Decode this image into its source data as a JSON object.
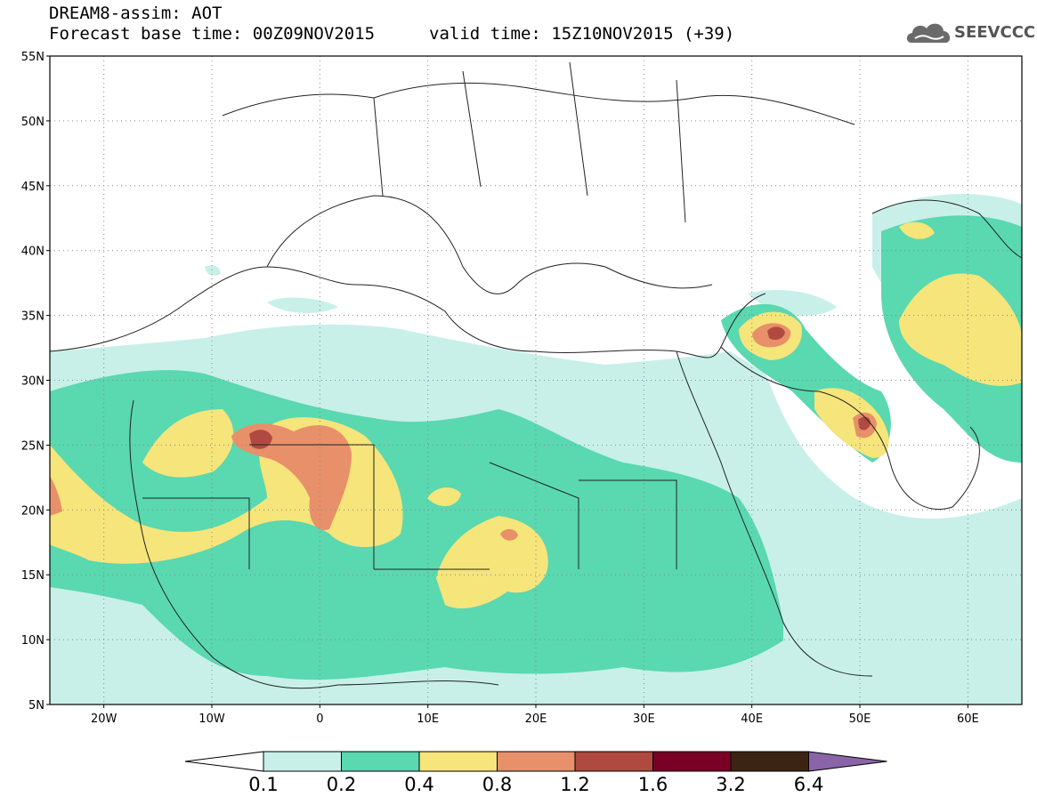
{
  "header": {
    "title": "DREAM8-assim: AOT",
    "base_time": "Forecast base time: 00Z09NOV2015",
    "valid_time": "valid time: 15Z10NOV2015 (+39)",
    "logo_text": "SEEVCCC",
    "logo_icon": "cloud-icon"
  },
  "map": {
    "lon_range": [
      -25,
      65
    ],
    "lat_range": [
      5,
      55
    ],
    "lat_ticks": [
      {
        "value": 55,
        "label": "55N"
      },
      {
        "value": 50,
        "label": "50N"
      },
      {
        "value": 45,
        "label": "45N"
      },
      {
        "value": 40,
        "label": "40N"
      },
      {
        "value": 35,
        "label": "35N"
      },
      {
        "value": 30,
        "label": "30N"
      },
      {
        "value": 25,
        "label": "25N"
      },
      {
        "value": 20,
        "label": "20N"
      },
      {
        "value": 15,
        "label": "15N"
      },
      {
        "value": 10,
        "label": "10N"
      },
      {
        "value": 5,
        "label": "5N"
      }
    ],
    "lon_ticks": [
      {
        "value": -20,
        "label": "20W"
      },
      {
        "value": -10,
        "label": "10W"
      },
      {
        "value": 0,
        "label": "0"
      },
      {
        "value": 10,
        "label": "10E"
      },
      {
        "value": 20,
        "label": "20E"
      },
      {
        "value": 30,
        "label": "30E"
      },
      {
        "value": 40,
        "label": "40E"
      },
      {
        "value": 50,
        "label": "50E"
      },
      {
        "value": 60,
        "label": "60E"
      }
    ],
    "grid": "dotted"
  },
  "colorbar": {
    "levels": [
      "0.1",
      "0.2",
      "0.4",
      "0.8",
      "1.2",
      "1.6",
      "3.2",
      "6.4"
    ],
    "colors": [
      "#ffffff",
      "#c8f0e8",
      "#5ad8b0",
      "#f5e57a",
      "#e8906a",
      "#b04a40",
      "#7a0028",
      "#3c2414",
      "#8a64a8"
    ]
  }
}
